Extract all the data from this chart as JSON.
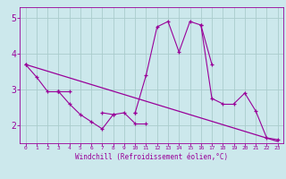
{
  "xlabel": "Windchill (Refroidissement éolien,°C)",
  "bg_color": "#cce8ec",
  "line_color": "#990099",
  "grid_color": "#aacccc",
  "x_values": [
    0,
    1,
    2,
    3,
    4,
    5,
    6,
    7,
    8,
    9,
    10,
    11,
    12,
    13,
    14,
    15,
    16,
    17,
    18,
    19,
    20,
    21,
    22,
    23
  ],
  "series1": [
    3.7,
    3.35,
    2.95,
    2.95,
    2.6,
    2.3,
    2.1,
    1.9,
    2.3,
    2.35,
    2.05,
    2.05,
    null,
    null,
    null,
    null,
    null,
    null,
    null,
    null,
    null,
    null,
    null,
    null
  ],
  "series2": [
    null,
    null,
    null,
    2.95,
    2.95,
    null,
    null,
    2.35,
    2.3,
    null,
    2.35,
    3.4,
    4.75,
    4.9,
    4.05,
    4.9,
    4.8,
    3.7,
    null,
    null,
    null,
    null,
    null,
    null
  ],
  "series3": [
    3.7,
    null,
    null,
    2.95,
    null,
    null,
    null,
    null,
    null,
    null,
    2.35,
    null,
    null,
    null,
    null,
    null,
    4.8,
    2.75,
    2.6,
    2.6,
    2.9,
    2.4,
    1.65,
    1.6
  ],
  "trend_x": [
    0,
    23
  ],
  "trend_y": [
    3.7,
    1.55
  ],
  "xlim": [
    -0.5,
    23.5
  ],
  "ylim": [
    1.5,
    5.3
  ],
  "yticks": [
    2,
    3,
    4,
    5
  ],
  "xticks": [
    0,
    1,
    2,
    3,
    4,
    5,
    6,
    7,
    8,
    9,
    10,
    11,
    12,
    13,
    14,
    15,
    16,
    17,
    18,
    19,
    20,
    21,
    22,
    23
  ]
}
